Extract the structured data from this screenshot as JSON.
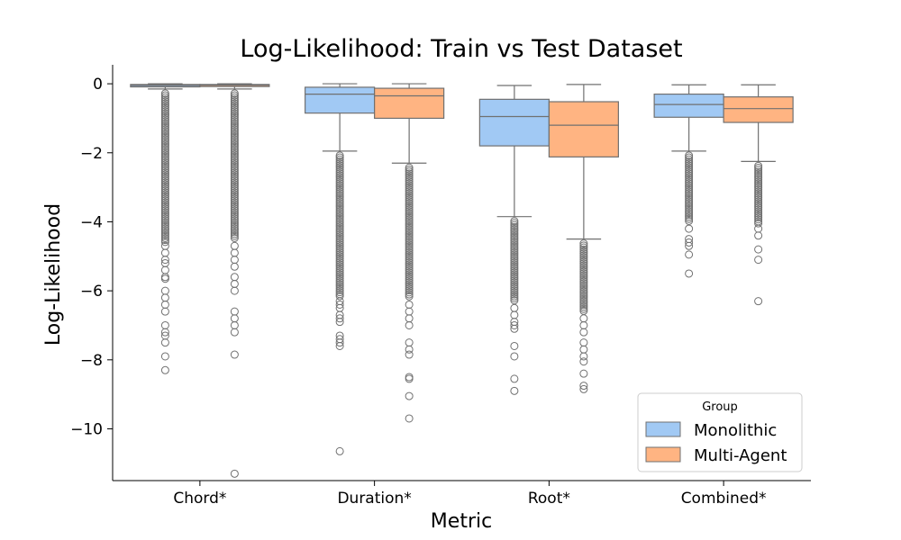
{
  "chart_data": {
    "type": "box",
    "title": "Log-Likelihood: Train vs Test Dataset",
    "xlabel": "Metric",
    "ylabel": "Log-Likelihood",
    "categories": [
      "Chord*",
      "Duration*",
      "Root*",
      "Combined*"
    ],
    "ylim": [
      -11.5,
      0.55
    ],
    "yticks": [
      0,
      -2,
      -4,
      -6,
      -8,
      -10
    ],
    "ytick_labels": [
      "0",
      "−2",
      "−4",
      "−6",
      "−8",
      "−10"
    ],
    "grid": false,
    "legend": {
      "title": "Group",
      "position": "bottom-right"
    },
    "series": [
      {
        "name": "Monolithic",
        "color": "#a1c9f4",
        "boxes": [
          {
            "whisker_low": -0.15,
            "q1": -0.09,
            "median": -0.05,
            "q3": -0.02,
            "whisker_high": 0.0,
            "outlier_range": [
              -0.15,
              -4.6
            ],
            "outliers": [
              -4.7,
              -4.9,
              -5.1,
              -5.2,
              -5.4,
              -5.6,
              -5.65,
              -6.0,
              -6.2,
              -6.4,
              -6.6,
              -7.0,
              -7.2,
              -7.3,
              -7.5,
              -7.9,
              -8.3
            ]
          },
          {
            "whisker_low": -1.95,
            "q1": -0.85,
            "median": -0.3,
            "q3": -0.1,
            "whisker_high": 0.0,
            "outlier_range": [
              -1.95,
              -6.2
            ],
            "outliers": [
              -6.3,
              -6.4,
              -6.5,
              -6.7,
              -6.8,
              -6.9,
              -7.3,
              -7.4,
              -7.5,
              -7.6,
              -10.65
            ]
          },
          {
            "whisker_low": -3.85,
            "q1": -1.8,
            "median": -0.95,
            "q3": -0.45,
            "whisker_high": -0.05,
            "outlier_range": [
              -3.85,
              -6.3
            ],
            "outliers": [
              -6.5,
              -6.7,
              -6.9,
              -7.0,
              -7.1,
              -7.6,
              -7.9,
              -8.55,
              -8.9
            ]
          },
          {
            "whisker_low": -1.95,
            "q1": -0.97,
            "median": -0.6,
            "q3": -0.3,
            "whisker_high": -0.03,
            "outlier_range": [
              -1.95,
              -4.0
            ],
            "outliers": [
              -4.2,
              -4.5,
              -4.6,
              -4.7,
              -4.95,
              -5.5
            ]
          }
        ]
      },
      {
        "name": "Multi-Agent",
        "color": "#ffb482",
        "boxes": [
          {
            "whisker_low": -0.15,
            "q1": -0.08,
            "median": -0.04,
            "q3": -0.02,
            "whisker_high": 0.0,
            "outlier_range": [
              -0.15,
              -4.5
            ],
            "outliers": [
              -4.7,
              -4.9,
              -5.1,
              -5.3,
              -5.6,
              -5.8,
              -6.0,
              -6.6,
              -6.8,
              -7.0,
              -7.2,
              -7.85,
              -11.3
            ]
          },
          {
            "whisker_low": -2.3,
            "q1": -1.0,
            "median": -0.35,
            "q3": -0.13,
            "whisker_high": 0.0,
            "outlier_range": [
              -2.3,
              -6.2
            ],
            "outliers": [
              -6.4,
              -6.6,
              -6.8,
              -7.0,
              -7.5,
              -7.7,
              -7.85,
              -8.5,
              -8.55,
              -9.05,
              -9.7
            ]
          },
          {
            "whisker_low": -4.5,
            "q1": -2.12,
            "median": -1.2,
            "q3": -0.52,
            "whisker_high": -0.02,
            "outlier_range": [
              -4.5,
              -6.6
            ],
            "outliers": [
              -6.8,
              -7.0,
              -7.2,
              -7.5,
              -7.7,
              -7.9,
              -8.05,
              -8.4,
              -8.75,
              -8.85
            ]
          },
          {
            "whisker_low": -2.25,
            "q1": -1.12,
            "median": -0.72,
            "q3": -0.38,
            "whisker_high": -0.03,
            "outlier_range": [
              -2.25,
              -4.1
            ],
            "outliers": [
              -4.2,
              -4.4,
              -4.8,
              -5.1,
              -6.3
            ]
          }
        ]
      }
    ]
  }
}
